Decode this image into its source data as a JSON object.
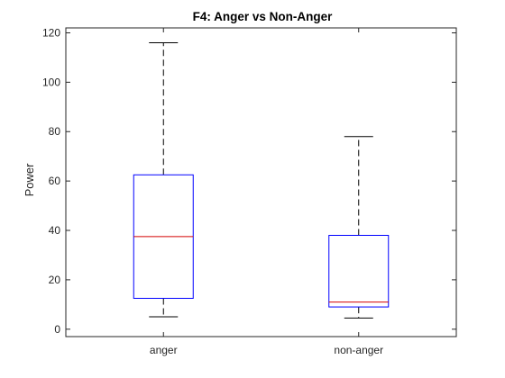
{
  "chart_data": {
    "type": "box",
    "title": "F4: Anger vs Non-Anger",
    "xlabel": "",
    "ylabel": "Power",
    "ylim": [
      -3,
      122
    ],
    "yticks": [
      0,
      20,
      40,
      60,
      80,
      100,
      120
    ],
    "categories": [
      "anger",
      "non-anger"
    ],
    "boxes": [
      {
        "category": "anger",
        "whisker_low": 5,
        "q1": 12.5,
        "median": 37.5,
        "q3": 62.5,
        "whisker_high": 116
      },
      {
        "category": "non-anger",
        "whisker_low": 4.5,
        "q1": 9,
        "median": 11,
        "q3": 38,
        "whisker_high": 78
      }
    ],
    "grid": false,
    "colors": {
      "box": "#0000ff",
      "median": "#d40000",
      "whisker": "#000000",
      "axes": "#262626"
    }
  }
}
